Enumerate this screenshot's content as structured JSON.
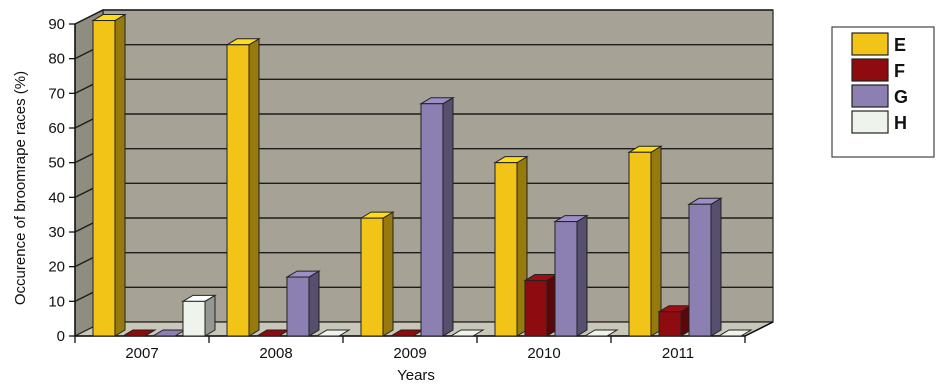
{
  "chart_data": {
    "type": "bar",
    "title": "",
    "xlabel": "Years",
    "ylabel": "Occurence of broomrape races (%)",
    "ylim": [
      0,
      90
    ],
    "yticks": [
      "0",
      "10",
      "20",
      "30",
      "40",
      "50",
      "60",
      "70",
      "80",
      "90"
    ],
    "categories": [
      "2007",
      "2008",
      "2009",
      "2010",
      "2011"
    ],
    "series": [
      {
        "name": "E",
        "color": "#f2c417",
        "values": [
          91,
          84,
          34,
          50,
          53
        ]
      },
      {
        "name": "F",
        "color": "#8e0b10",
        "values": [
          0,
          0,
          0,
          16,
          7
        ]
      },
      {
        "name": "G",
        "color": "#8c7fb2",
        "values": [
          0,
          17,
          67,
          33,
          38
        ]
      },
      {
        "name": "H",
        "color": "#eef4ec",
        "values": [
          10,
          0,
          0,
          0,
          0
        ]
      }
    ],
    "grid": true,
    "legend_position": "right"
  }
}
